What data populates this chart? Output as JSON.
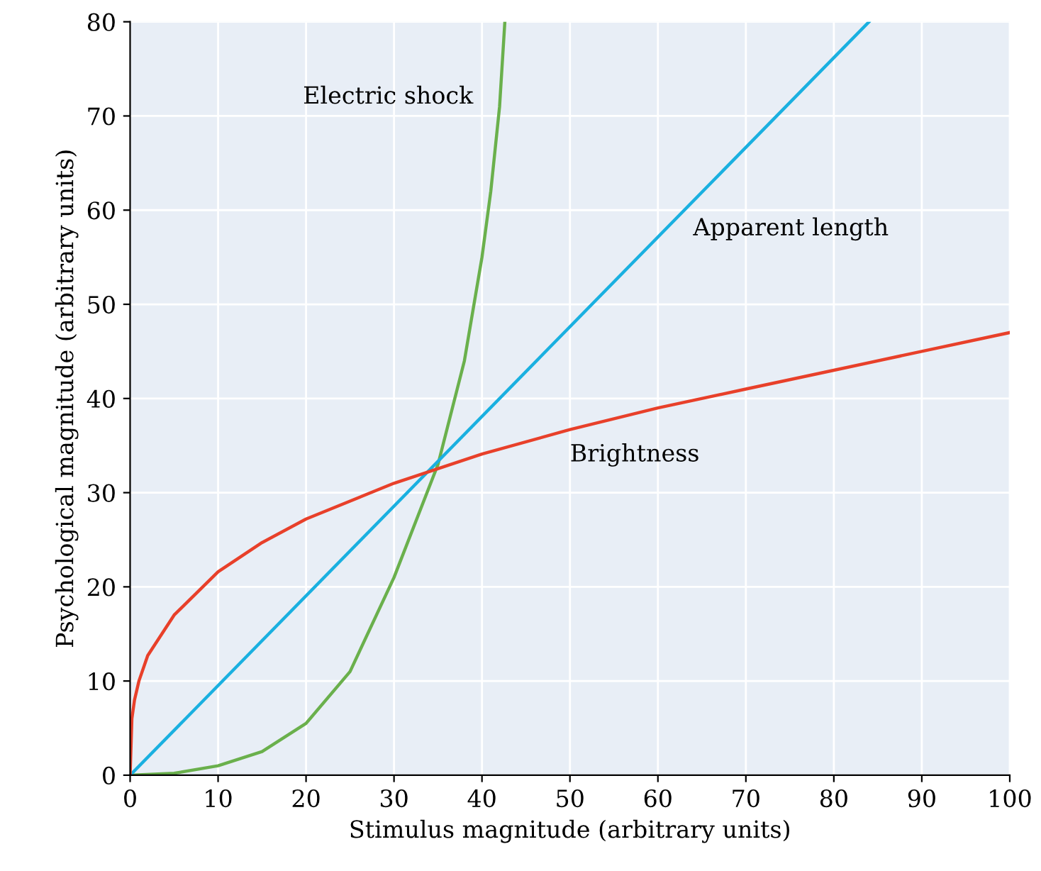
{
  "chart_data": {
    "type": "line",
    "xlabel": "Stimulus magnitude (arbitrary units)",
    "ylabel": "Psychological magnitude (arbitrary units)",
    "series": [
      {
        "name": "Electric shock",
        "color": "#6ab04c",
        "x": [
          0,
          5,
          10,
          15,
          20,
          25,
          30,
          35,
          38,
          40,
          41,
          42,
          42.6
        ],
        "values": [
          0,
          0.2,
          1,
          2.5,
          5.5,
          11,
          21,
          33,
          44,
          55,
          62,
          71,
          80
        ]
      },
      {
        "name": "Apparent length",
        "color": "#1ab0e0",
        "x": [
          0,
          84
        ],
        "values": [
          0,
          80
        ]
      },
      {
        "name": "Brightness",
        "color": "#e8402a",
        "x": [
          0,
          0.2,
          0.5,
          1,
          2,
          5,
          10,
          15,
          20,
          30,
          40,
          50,
          60,
          70,
          80,
          90,
          100
        ],
        "values": [
          0,
          6,
          8,
          10,
          12.7,
          17,
          21.6,
          24.7,
          27.2,
          31,
          34.1,
          36.7,
          39,
          41,
          43,
          45,
          47
        ]
      }
    ],
    "xlim": [
      0,
      100
    ],
    "ylim": [
      0,
      80
    ],
    "xticks": [
      0,
      10,
      20,
      30,
      40,
      50,
      60,
      70,
      80,
      90,
      100
    ],
    "yticks": [
      0,
      10,
      20,
      30,
      40,
      50,
      60,
      70,
      80
    ],
    "grid": true,
    "legend": false,
    "marker": "none",
    "line_style": "solid"
  }
}
